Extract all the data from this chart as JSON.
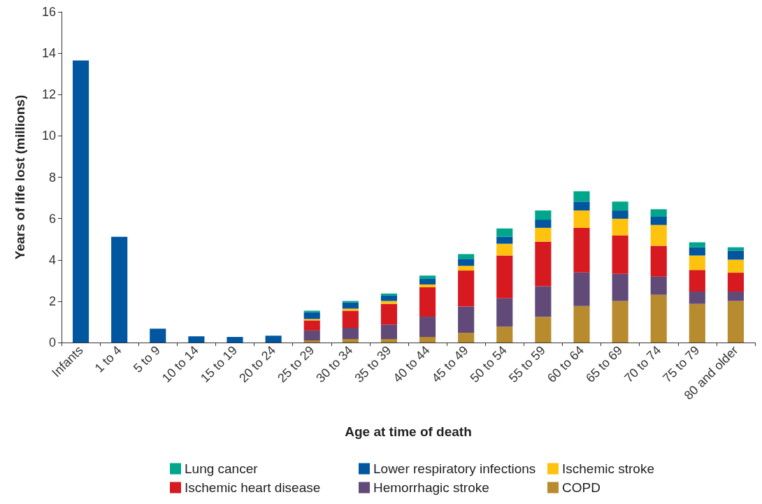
{
  "chart_data": {
    "type": "bar",
    "stacked": true,
    "xlabel": "Age at time of death",
    "ylabel": "Years of life lost (millions)",
    "categories": [
      "Infants",
      "1 to 4",
      "5 to 9",
      "10 to 14",
      "15 to 19",
      "20 to 24",
      "25 to 29",
      "30 to 34",
      "35 to 39",
      "40 to 44",
      "45 to 49",
      "50 to 54",
      "55 to 59",
      "60 to 64",
      "65 to 69",
      "70 to 74",
      "75 to 79",
      "80 and older"
    ],
    "series": [
      {
        "name": "COPD",
        "color": "#b88b2e",
        "values": [
          null,
          null,
          null,
          null,
          null,
          null,
          0.1,
          0.17,
          0.17,
          0.27,
          0.47,
          0.77,
          1.24,
          1.77,
          2.01,
          2.31,
          1.87,
          2.01
        ]
      },
      {
        "name": "Hemorrhagic stroke",
        "color": "#614a78",
        "values": [
          null,
          null,
          null,
          null,
          null,
          null,
          0.48,
          0.54,
          0.7,
          0.98,
          1.27,
          1.37,
          1.48,
          1.62,
          1.31,
          0.88,
          0.6,
          0.46
        ]
      },
      {
        "name": "Ischemic heart disease",
        "color": "#d71920",
        "values": [
          null,
          null,
          null,
          null,
          null,
          null,
          0.49,
          0.83,
          1.0,
          1.43,
          1.74,
          2.07,
          2.16,
          2.16,
          1.86,
          1.49,
          1.04,
          0.91
        ]
      },
      {
        "name": "Ischemic stroke",
        "color": "#ffc20e",
        "values": [
          null,
          null,
          null,
          null,
          null,
          null,
          0.07,
          0.1,
          0.14,
          0.13,
          0.23,
          0.57,
          0.67,
          0.84,
          0.81,
          1.01,
          0.7,
          0.63
        ]
      },
      {
        "name": "Lower respiratory infections",
        "color": "#0057a0",
        "values": [
          13.65,
          5.12,
          0.67,
          0.3,
          0.27,
          0.33,
          0.33,
          0.3,
          0.26,
          0.27,
          0.34,
          0.34,
          0.4,
          0.43,
          0.4,
          0.4,
          0.4,
          0.44
        ]
      },
      {
        "name": "Lung cancer",
        "color": "#00a68c",
        "values": [
          null,
          null,
          null,
          null,
          null,
          null,
          0.07,
          0.07,
          0.1,
          0.16,
          0.23,
          0.4,
          0.44,
          0.5,
          0.43,
          0.36,
          0.24,
          0.16
        ]
      }
    ],
    "ylim": [
      0,
      16
    ],
    "yticks": [
      0,
      2,
      4,
      6,
      8,
      10,
      12,
      14,
      16
    ],
    "grid": false,
    "legend": "bottom"
  }
}
